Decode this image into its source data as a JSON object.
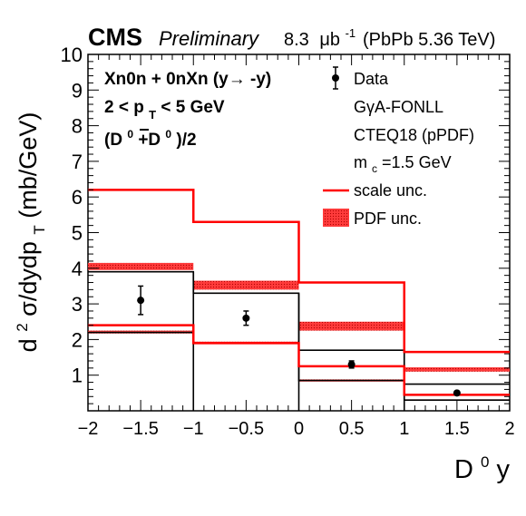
{
  "header": {
    "experiment": "CMS",
    "status": "Preliminary",
    "lumi_value": "8.3",
    "lumi_unit_base": "μb",
    "lumi_unit_exp": "-1",
    "system": "(PbPb 5.36 TeV)"
  },
  "selection": {
    "line1": "Xn0n + 0nXn (y→ -y)",
    "line2_pre": "2 < p",
    "line2_sub": "T",
    "line2_post": " < 5 GeV",
    "line3_a": "(D",
    "line3_a_sup": "0",
    "line3_b": "+D",
    "line3_b_sup": "0",
    "line3_c": ")/2"
  },
  "legend": {
    "data": "Data",
    "model": "GγA-FONLL",
    "pdf_set": "CTEQ18 (pPDF)",
    "mc_pre": "m",
    "mc_sub": "c",
    "mc_post": "=1.5 GeV",
    "scale": "scale unc.",
    "pdf": "PDF unc."
  },
  "axis_titles": {
    "y_d": "d",
    "y_sup2": "2",
    "y_mid": "σ/dydp",
    "y_sub": "T",
    "y_unit": " (mb/GeV)",
    "x_base": "D",
    "x_sup": "0",
    "x_rest": " y"
  },
  "colors": {
    "data": "#000000",
    "scale": "#ff0000",
    "pdf_band": "#ff0000",
    "central": "#000000"
  },
  "chart_data": {
    "type": "histogram",
    "xlim": [
      -2,
      2
    ],
    "ylim": [
      0,
      10
    ],
    "x_ticks": [
      -2,
      -1.5,
      -1,
      -0.5,
      0,
      0.5,
      1,
      1.5,
      2
    ],
    "x_tick_labels": [
      "−2",
      "−1.5",
      "−1",
      "−0.5",
      "0",
      "0.5",
      "1",
      "1.5",
      "2"
    ],
    "y_ticks": [
      1,
      2,
      3,
      4,
      5,
      6,
      7,
      8,
      9,
      10
    ],
    "bin_edges": [
      -2,
      -1,
      0,
      1,
      2
    ],
    "data": {
      "name": "Data",
      "x": [
        -1.5,
        -0.5,
        0.5,
        1.5
      ],
      "y": [
        3.1,
        2.6,
        1.3,
        0.5
      ],
      "yerr": [
        0.4,
        0.2,
        0.1,
        0.05
      ]
    },
    "central_upper": [
      3.9,
      3.3,
      1.7,
      0.75
    ],
    "central_lower": [
      2.2,
      1.9,
      0.85,
      0.3
    ],
    "scale_upper": [
      6.2,
      5.3,
      3.6,
      1.65
    ],
    "scale_lower": [
      2.4,
      1.9,
      1.25,
      0.45
    ],
    "pdf_upper_band": [
      [
        3.95,
        4.15
      ],
      [
        3.4,
        3.65
      ],
      [
        2.25,
        2.5
      ],
      [
        1.1,
        1.22
      ]
    ],
    "pdf_lower_band": [
      [
        2.17,
        2.25
      ],
      [
        1.88,
        1.94
      ],
      [
        0.82,
        0.88
      ],
      [
        0.28,
        0.32
      ]
    ]
  }
}
